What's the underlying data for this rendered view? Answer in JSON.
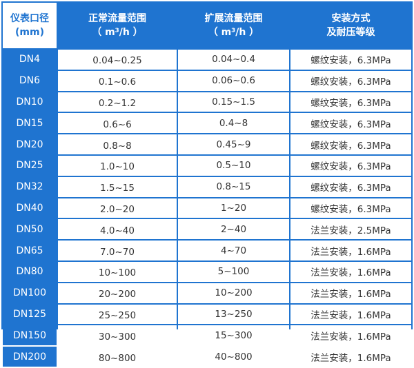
{
  "header": {
    "col1_line1": "仪表口径",
    "col1_line2": "(mm)",
    "col2_line1": "正常流量范围",
    "col2_line2": "（ m³/h ）",
    "col3_line1": "扩展流量范围",
    "col3_line2": "（ m³/h ）",
    "col4_line1": "安装方式",
    "col4_line2": "及耐压等级"
  },
  "rows": [
    [
      "DN4",
      "0.04~0.25",
      "0.04~0.4",
      "螺纹安装，6.3MPa"
    ],
    [
      "DN6",
      "0.1~0.6",
      "0.06~0.6",
      "螺纹安装，6.3MPa"
    ],
    [
      "DN10",
      "0.2~1.2",
      "0.15~1.5",
      "螺纹安装，6.3MPa"
    ],
    [
      "DN15",
      "0.6~6",
      "0.4~8",
      "螺纹安装，6.3MPa"
    ],
    [
      "DN20",
      "0.8~8",
      "0.45~9",
      "螺纹安装，6.3MPa"
    ],
    [
      "DN25",
      "1.0~10",
      "0.5~10",
      "螺纹安装，6.3MPa"
    ],
    [
      "DN32",
      "1.5~15",
      "0.8~15",
      "螺纹安装，6.3MPa"
    ],
    [
      "DN40",
      "2.0~20",
      "1~20",
      "螺纹安装，6.3MPa"
    ],
    [
      "DN50",
      "4.0~40",
      "2~40",
      "法兰安装，2.5MPa"
    ],
    [
      "DN65",
      "7.0~70",
      "4~70",
      "法兰安装，1.6MPa"
    ],
    [
      "DN80",
      "10~100",
      "5~100",
      "法兰安装，1.6MPa"
    ],
    [
      "DN100",
      "20~200",
      "10~200",
      "法兰安装，1.6MPa"
    ],
    [
      "DN125",
      "25~250",
      "13~250",
      "法兰安装，1.6MPa"
    ],
    [
      "DN150",
      "30~300",
      "15~300",
      "法兰安装，1.6MPa"
    ],
    [
      "DN200",
      "80~800",
      "40~800",
      "法兰安装，1.6MPa"
    ]
  ],
  "colors": {
    "accent": "#1f74d0"
  }
}
